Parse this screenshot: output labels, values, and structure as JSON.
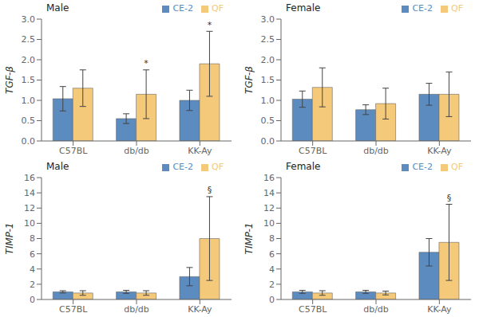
{
  "chart_data": [
    {
      "type": "bar",
      "title": "Male",
      "ylabel": "TGF-β",
      "categories": [
        "C57BL",
        "db/db",
        "KK-Ay"
      ],
      "series": [
        {
          "name": "CE-2",
          "color": "#5b8bbf",
          "values": [
            1.04,
            0.55,
            1.0
          ],
          "errors": [
            0.3,
            0.12,
            0.25
          ]
        },
        {
          "name": "QF",
          "color": "#f5c97a",
          "values": [
            1.3,
            1.15,
            1.9
          ],
          "errors": [
            0.45,
            0.6,
            0.8
          ]
        }
      ],
      "ylim": [
        0,
        3
      ],
      "yticks": [
        {
          "value": 0,
          "label": "0.0"
        },
        0.5,
        {
          "value": 1.0,
          "label": "1.0"
        },
        1.5,
        {
          "value": 2.0,
          "label": "2.0"
        },
        2.5,
        {
          "value": 3.0,
          "label": "3.0"
        }
      ],
      "annotations": [
        {
          "category": "db/db",
          "series": "QF",
          "text": "*"
        },
        {
          "category": "KK-Ay",
          "series": "QF",
          "text": "*"
        }
      ],
      "legend": "upper right",
      "grid": false
    },
    {
      "type": "bar",
      "title": "Female",
      "ylabel": "TGF-β",
      "categories": [
        "C57BL",
        "db/db",
        "KK-Ay"
      ],
      "series": [
        {
          "name": "CE-2",
          "color": "#5b8bbf",
          "values": [
            1.03,
            0.77,
            1.15
          ],
          "errors": [
            0.2,
            0.12,
            0.27
          ]
        },
        {
          "name": "QF",
          "color": "#f5c97a",
          "values": [
            1.32,
            0.92,
            1.15
          ],
          "errors": [
            0.48,
            0.38,
            0.55
          ]
        }
      ],
      "ylim": [
        0,
        3
      ],
      "yticks": [
        {
          "value": 0,
          "label": "0.0"
        },
        0.5,
        {
          "value": 1.0,
          "label": "1.0"
        },
        1.5,
        {
          "value": 2.0,
          "label": "2.0"
        },
        2.5,
        {
          "value": 3.0,
          "label": "3.0"
        }
      ],
      "annotations": [],
      "legend": "upper right",
      "grid": false
    },
    {
      "type": "bar",
      "title": "Male",
      "ylabel": "TIMP-1",
      "categories": [
        "C57BL",
        "db/db",
        "KK-Ay"
      ],
      "series": [
        {
          "name": "CE-2",
          "color": "#5b8bbf",
          "values": [
            1.0,
            1.0,
            3.0
          ],
          "errors": [
            0.15,
            0.2,
            1.2
          ]
        },
        {
          "name": "QF",
          "color": "#f5c97a",
          "values": [
            0.85,
            0.85,
            8.0
          ],
          "errors": [
            0.3,
            0.3,
            5.5
          ]
        }
      ],
      "ylim": [
        0,
        16
      ],
      "yticks": [
        0,
        2,
        4,
        6,
        8,
        10,
        12,
        14,
        16
      ],
      "annotations": [
        {
          "category": "KK-Ay",
          "series": "QF",
          "text": "§"
        }
      ],
      "legend": "upper right",
      "grid": false
    },
    {
      "type": "bar",
      "title": "Female",
      "ylabel": "TIMP-1",
      "categories": [
        "C57BL",
        "db/db",
        "KK-Ay"
      ],
      "series": [
        {
          "name": "CE-2",
          "color": "#5b8bbf",
          "values": [
            1.0,
            1.0,
            6.2
          ],
          "errors": [
            0.2,
            0.2,
            1.8
          ]
        },
        {
          "name": "QF",
          "color": "#f5c97a",
          "values": [
            0.85,
            0.85,
            7.5
          ],
          "errors": [
            0.3,
            0.25,
            5.0
          ]
        }
      ],
      "ylim": [
        0,
        16
      ],
      "yticks": [
        0,
        2,
        4,
        6,
        8,
        10,
        12,
        14,
        16
      ],
      "annotations": [
        {
          "category": "KK-Ay",
          "series": "QF",
          "text": "§"
        }
      ],
      "legend": "upper right",
      "grid": false
    }
  ]
}
